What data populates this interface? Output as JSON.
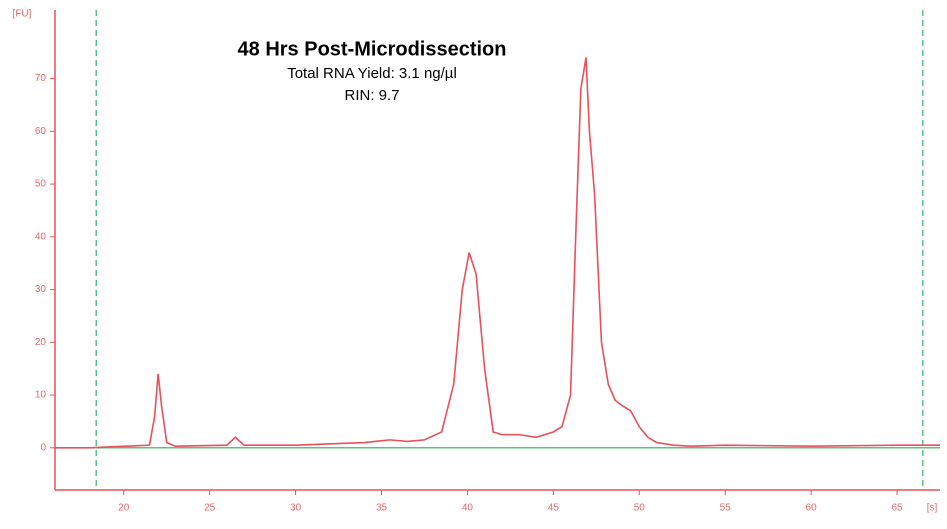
{
  "chart_data": {
    "type": "line",
    "title": "48 Hrs Post-Microdissection",
    "subtitle": "Total RNA Yield: 3.1 ng/µl",
    "annotation": "RIN: 9.7",
    "y_label": "[FU]",
    "x_label": "[s]",
    "x": [
      16,
      18,
      21.5,
      21.8,
      22.0,
      22.2,
      22.5,
      23,
      26,
      26.5,
      27,
      30,
      34,
      35.5,
      36.5,
      37.5,
      38.5,
      39.2,
      39.7,
      40.1,
      40.5,
      41,
      41.5,
      42,
      43,
      44,
      45,
      45.5,
      46,
      46.3,
      46.6,
      46.9,
      47.1,
      47.4,
      47.8,
      48.2,
      48.6,
      49,
      49.5,
      50,
      50.5,
      51,
      52,
      53,
      55,
      60,
      65,
      67.5
    ],
    "series": [
      {
        "color": "#e8505a",
        "values": [
          0,
          0,
          0.5,
          6,
          14,
          8,
          1,
          0.3,
          0.5,
          2,
          0.5,
          0.5,
          1,
          1.5,
          1.2,
          1.5,
          3,
          12,
          30,
          37,
          33,
          15,
          3,
          2.5,
          2.5,
          2,
          3,
          4,
          10,
          40,
          68,
          74,
          60,
          48,
          20,
          12,
          9,
          8,
          7,
          4,
          2,
          1,
          0.5,
          0.3,
          0.5,
          0.3,
          0.5,
          0.5
        ]
      }
    ],
    "baseline": 0,
    "baseline_color": "#5cc08a",
    "markers": [
      18.4,
      66.5
    ],
    "marker_color": "#5cc08a",
    "axis_color": "#e8505a",
    "xlim": [
      16,
      67.5
    ],
    "ylim": [
      -8,
      83
    ],
    "xticks": [
      20,
      25,
      30,
      35,
      40,
      45,
      50,
      55,
      60,
      65
    ],
    "yticks": [
      0,
      10,
      20,
      30,
      40,
      50,
      60,
      70
    ]
  }
}
